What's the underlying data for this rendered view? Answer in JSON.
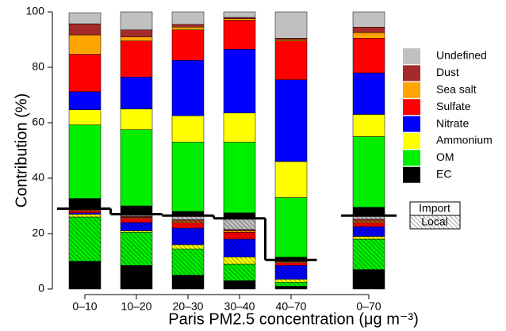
{
  "chart_data": {
    "type": "stacked-bar",
    "y_label": "Contribution (%)",
    "x_label": "Paris PM2.5 concentration (μg m⁻³)",
    "categories": [
      "0–10",
      "10–20",
      "20–30",
      "30–40",
      "40–70",
      "0–70"
    ],
    "ylim": [
      0,
      100
    ],
    "yticks": [
      0,
      20,
      40,
      60,
      80,
      100
    ],
    "series": [
      {
        "name": "EC",
        "color": "#000000",
        "local": [
          10,
          8.5,
          5,
          3,
          1,
          7
        ],
        "import": [
          3.5,
          3,
          1.5,
          2,
          1,
          3
        ]
      },
      {
        "name": "OM",
        "color": "#00ee00",
        "local": [
          16,
          12,
          9.5,
          6,
          1.5,
          11
        ],
        "import": [
          26.5,
          27.5,
          25,
          25.5,
          21.5,
          25.5
        ]
      },
      {
        "name": "Ammonium",
        "color": "#ffff00",
        "local": [
          1,
          0.5,
          1.5,
          2.5,
          1,
          1
        ],
        "import": [
          5.5,
          7.5,
          9.5,
          10.5,
          13,
          8
        ]
      },
      {
        "name": "Nitrate",
        "color": "#0000ff",
        "local": [
          0.5,
          3,
          6,
          6.5,
          5,
          3.5
        ],
        "import": [
          6.5,
          11.5,
          20,
          23,
          29.5,
          15
        ]
      },
      {
        "name": "Sulfate",
        "color": "#ff0000",
        "local": [
          0.8,
          1.5,
          2,
          2.5,
          1,
          1.5
        ],
        "import": [
          13.5,
          13,
          11,
          10.5,
          14,
          12.5
        ]
      },
      {
        "name": "Sea salt",
        "color": "#ffa500",
        "local": [
          0.3,
          0.3,
          0.5,
          0.5,
          0.3,
          0.5
        ],
        "import": [
          7,
          1.5,
          1,
          0.5,
          0.5,
          2
        ]
      },
      {
        "name": "Dust",
        "color": "#a52a2a",
        "local": [
          0.3,
          0.5,
          0.5,
          0.5,
          0.3,
          0.7
        ],
        "import": [
          4,
          2.5,
          1,
          0.5,
          0.5,
          2
        ]
      },
      {
        "name": "Undefined",
        "color": "#c0c0c0",
        "local": [
          0.3,
          0.7,
          1.5,
          4,
          0.4,
          1.3
        ],
        "import": [
          4,
          6.5,
          4.5,
          2,
          9.5,
          5.5
        ]
      }
    ],
    "local_total": [
      29,
      27,
      26.5,
      25.5,
      10.5,
      26.5
    ],
    "split_legend": [
      "Import",
      "Local"
    ]
  }
}
